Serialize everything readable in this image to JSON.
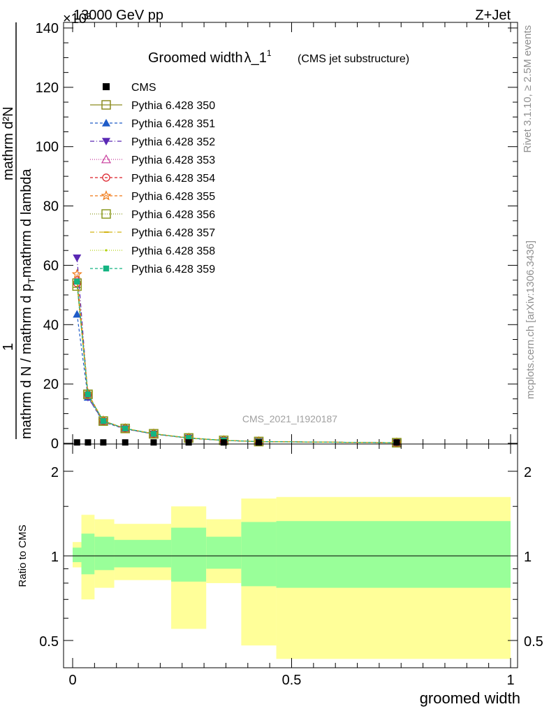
{
  "header": {
    "left": "13000 GeV pp",
    "right": "Z+Jet",
    "exponent": "×10³"
  },
  "side_labels": {
    "rivet": "Rivet 3.1.10, ≥ 2.5M events",
    "mcplots": "mcplots.cern.ch [arXiv:1306.3436]"
  },
  "watermark": "CMS_2021_I1920187",
  "chart_data": [
    {
      "type": "line",
      "title": "Groomed width",
      "title_symbol": "λ_1",
      "title_sup": "1",
      "title_note": "(CMS jet substructure)",
      "ylabel_numerator": "mathrm d²N",
      "ylabel_denominator": "mathrm d N / mathrm d p",
      "ylabel_denominator_2": "mathrm d p",
      "ylabel_denominator_3": "mathrm d lambda",
      "ylabel_sub": "T",
      "ylabel_one": "1",
      "ylim": [
        0,
        140
      ],
      "xlim": [
        -0.02,
        1.0
      ],
      "yticks": [
        "0",
        "20",
        "40",
        "60",
        "80",
        "100",
        "120",
        "140"
      ],
      "x": [
        0.01,
        0.035,
        0.07,
        0.12,
        0.185,
        0.265,
        0.345,
        0.425,
        0.74
      ],
      "cms": {
        "name": "CMS",
        "values": [
          0.3,
          0.3,
          0.3,
          0.3,
          0.3,
          0.3,
          0.3,
          0.3,
          0.3
        ]
      },
      "series": [
        {
          "name": "Pythia 6.428 350",
          "color": "#8c8c20",
          "marker": "square-open",
          "dash": "",
          "values": [
            54,
            16.5,
            7.5,
            5,
            3.2,
            1.8,
            1.0,
            0.6,
            0.2
          ]
        },
        {
          "name": "Pythia 6.428 351",
          "color": "#1f5cc8",
          "marker": "triangle-up",
          "dash": "4,3",
          "values": [
            43.5,
            15.5,
            7.2,
            4.8,
            3.1,
            1.7,
            0.95,
            0.55,
            0.2
          ]
        },
        {
          "name": "Pythia 6.428 352",
          "color": "#5a28b4",
          "marker": "triangle-down",
          "dash": "6,3,1,3",
          "values": [
            62.5,
            15.5,
            7.4,
            4.9,
            3.1,
            1.8,
            1.0,
            0.6,
            0.2
          ]
        },
        {
          "name": "Pythia 6.428 353",
          "color": "#c83c9c",
          "marker": "triangle-up-open",
          "dash": "1,2",
          "values": [
            55,
            16.5,
            7.6,
            5,
            3.2,
            1.8,
            1.0,
            0.6,
            0.2
          ]
        },
        {
          "name": "Pythia 6.428 354",
          "color": "#dc1e28",
          "marker": "circle-open",
          "dash": "4,3",
          "values": [
            54,
            16.5,
            7.5,
            5,
            3.2,
            1.8,
            1.0,
            0.6,
            0.2
          ]
        },
        {
          "name": "Pythia 6.428 355",
          "color": "#f07814",
          "marker": "star-open",
          "dash": "4,3",
          "values": [
            57,
            16.8,
            7.6,
            5,
            3.2,
            1.8,
            1.0,
            0.6,
            0.2
          ]
        },
        {
          "name": "Pythia 6.428 356",
          "color": "#8c9a20",
          "marker": "square-open",
          "dash": "1,2",
          "values": [
            53,
            16.5,
            7.5,
            5,
            3.2,
            1.8,
            1.0,
            0.6,
            0.2
          ]
        },
        {
          "name": "Pythia 6.428 357",
          "color": "#d2b414",
          "marker": "dash",
          "dash": "6,3,1,3",
          "values": [
            54,
            16.3,
            7.4,
            5,
            3.2,
            1.8,
            1.0,
            0.6,
            0.2
          ]
        },
        {
          "name": "Pythia 6.428 358",
          "color": "#b4d214",
          "marker": "dot",
          "dash": "1,2",
          "values": [
            54.5,
            16.4,
            7.5,
            5,
            3.2,
            1.8,
            1.0,
            0.6,
            0.2
          ]
        },
        {
          "name": "Pythia 6.428 359",
          "color": "#14b482",
          "marker": "square",
          "dash": "4,3",
          "values": [
            54.5,
            16.5,
            7.5,
            5,
            3.2,
            1.8,
            1.0,
            0.6,
            0.2
          ]
        }
      ]
    },
    {
      "type": "area",
      "ylabel": "Ratio to CMS",
      "xlabel": "groomed width",
      "ylim": [
        0.4,
        2.3
      ],
      "yticks": [
        "0.5",
        "1",
        "2"
      ],
      "xticks": [
        "0",
        "0.5",
        "1"
      ],
      "bands": [
        {
          "x0": 0.0,
          "x1": 0.02,
          "yellow": [
            0.91,
            1.12
          ],
          "green": [
            0.95,
            1.07
          ]
        },
        {
          "x0": 0.02,
          "x1": 0.05,
          "yellow": [
            0.7,
            1.4
          ],
          "green": [
            0.86,
            1.2
          ]
        },
        {
          "x0": 0.05,
          "x1": 0.095,
          "yellow": [
            0.77,
            1.35
          ],
          "green": [
            0.89,
            1.17
          ]
        },
        {
          "x0": 0.095,
          "x1": 0.225,
          "yellow": [
            0.82,
            1.3
          ],
          "green": [
            0.91,
            1.14
          ]
        },
        {
          "x0": 0.225,
          "x1": 0.305,
          "yellow": [
            0.55,
            1.5
          ],
          "green": [
            0.81,
            1.26
          ]
        },
        {
          "x0": 0.305,
          "x1": 0.385,
          "yellow": [
            0.8,
            1.35
          ],
          "green": [
            0.9,
            1.17
          ]
        },
        {
          "x0": 0.385,
          "x1": 0.465,
          "yellow": [
            0.48,
            1.6
          ],
          "green": [
            0.78,
            1.32
          ]
        },
        {
          "x0": 0.465,
          "x1": 1.0,
          "yellow": [
            0.43,
            1.62
          ],
          "green": [
            0.77,
            1.33
          ]
        }
      ]
    }
  ]
}
